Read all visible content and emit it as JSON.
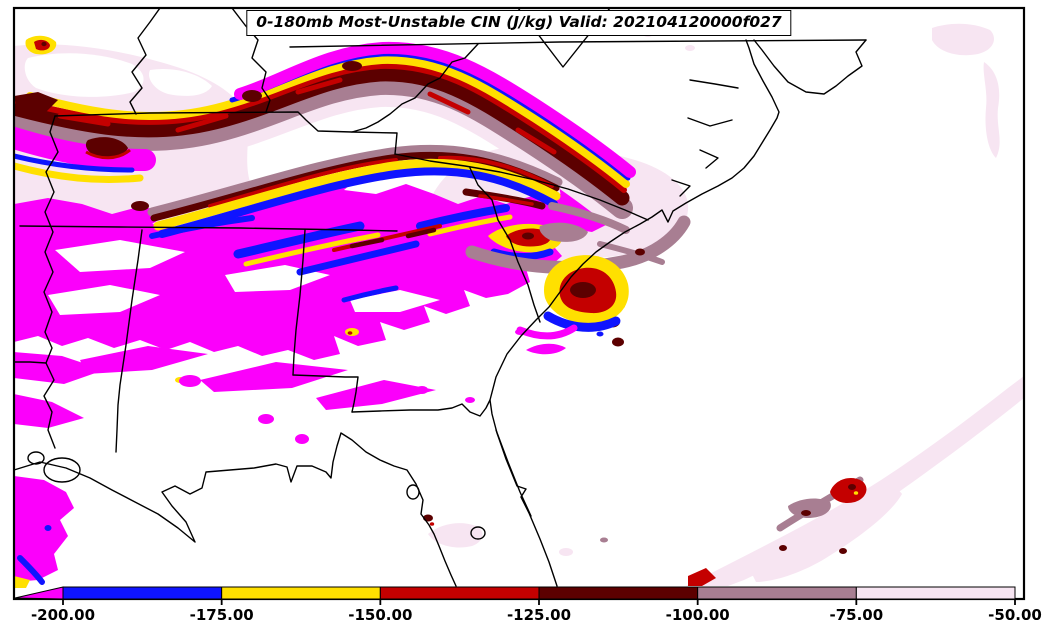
{
  "title": {
    "text": "0-180mb Most-Unstable CIN (J/kg) Valid: 202104120000f027"
  },
  "colorbar": {
    "orientation": "horizontal",
    "units": "J/kg",
    "tick_labels": [
      "-200.00",
      "-175.00",
      "-150.00",
      "-125.00",
      "-100.00",
      "-75.00",
      "-50.00"
    ],
    "boundaries": [
      -200,
      -175,
      -150,
      -125,
      -100,
      -75,
      -50
    ],
    "segment_colors": [
      "#0f14ff",
      "#ffe000",
      "#c40000",
      "#5c0000",
      "#a87e92",
      "#f7e5f2"
    ],
    "under_color": "#fb00fb",
    "under_value": "< -200"
  },
  "chart_data": {
    "type": "heatmap",
    "title": "0-180mb Most-Unstable CIN (J/kg) Valid: 202104120000f027",
    "variable": "Most-Unstable Convective Inhibition (CIN)",
    "layer": "0-180mb",
    "units": "J/kg",
    "valid": "202104120000f027",
    "legend_position": "bottom",
    "levels": [
      {
        "range": "< -200.00",
        "color": "#fb00fb"
      },
      {
        "range": "-200.00 to -175.00",
        "color": "#0f14ff"
      },
      {
        "range": "-175.00 to -150.00",
        "color": "#ffe000"
      },
      {
        "range": "-150.00 to -125.00",
        "color": "#c40000"
      },
      {
        "range": "-125.00 to -100.00",
        "color": "#5c0000"
      },
      {
        "range": "-100.00 to -75.00",
        "color": "#a87e92"
      },
      {
        "range": "-75.00 to -50.00",
        "color": "#f7e5f2"
      }
    ]
  },
  "palette": {
    "magenta": "#fb00fb",
    "blue": "#0f14ff",
    "yellow": "#ffe000",
    "red": "#c40000",
    "maroon": "#5c0000",
    "mauve": "#a87e92",
    "pale_pink": "#f7e5f2",
    "white": "#ffffff",
    "border": "#000000"
  }
}
